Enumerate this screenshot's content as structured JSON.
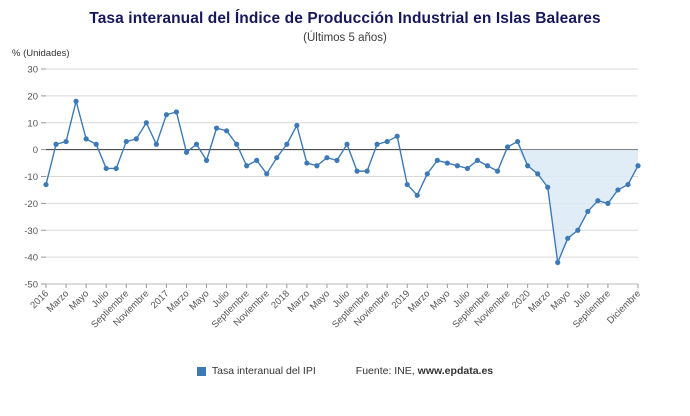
{
  "header": {
    "title": "Tasa interanual del Índice de Producción Industrial en Islas Baleares",
    "subtitle": "(Últimos 5 años)"
  },
  "legend": {
    "series_label": "Tasa interanual del IPI",
    "source_prefix": "Fuente: INE, ",
    "source_site": "www.epdata.es"
  },
  "colors": {
    "line": "#3d7ab5",
    "marker": "#3d7ab5",
    "area_fill": "#dbe9f4",
    "grid": "#d9d9d9",
    "zero_line": "#333333",
    "axis_text": "#555555",
    "title_text": "#17175c"
  },
  "chart_data": {
    "type": "line",
    "title": "Tasa interanual del Índice de Producción Industrial en Islas Baleares",
    "subtitle": "(Últimos 5 años)",
    "ylabel": "% (Unidades)",
    "series_name": "Tasa interanual del IPI",
    "x_start": "Enero 2016",
    "x_end": "Diciembre 2020",
    "frequency": "mensual",
    "ylim": [
      -50,
      30
    ],
    "y_ticks": [
      30,
      20,
      10,
      0,
      -10,
      -20,
      -30,
      -40,
      -50
    ],
    "x_ticks": [
      {
        "i": 0,
        "label": "2016"
      },
      {
        "i": 2,
        "label": "Marzo"
      },
      {
        "i": 4,
        "label": "Mayo"
      },
      {
        "i": 6,
        "label": "Julio"
      },
      {
        "i": 8,
        "label": "Septiembre"
      },
      {
        "i": 10,
        "label": "Noviembre"
      },
      {
        "i": 12,
        "label": "2017"
      },
      {
        "i": 14,
        "label": "Marzo"
      },
      {
        "i": 16,
        "label": "Mayo"
      },
      {
        "i": 18,
        "label": "Julio"
      },
      {
        "i": 20,
        "label": "Septiembre"
      },
      {
        "i": 22,
        "label": "Noviembre"
      },
      {
        "i": 24,
        "label": "2018"
      },
      {
        "i": 26,
        "label": "Marzo"
      },
      {
        "i": 28,
        "label": "Mayo"
      },
      {
        "i": 30,
        "label": "Julio"
      },
      {
        "i": 32,
        "label": "Septiembre"
      },
      {
        "i": 34,
        "label": "Noviembre"
      },
      {
        "i": 36,
        "label": "2019"
      },
      {
        "i": 38,
        "label": "Marzo"
      },
      {
        "i": 40,
        "label": "Mayo"
      },
      {
        "i": 42,
        "label": "Julio"
      },
      {
        "i": 44,
        "label": "Septiembre"
      },
      {
        "i": 46,
        "label": "Noviembre"
      },
      {
        "i": 48,
        "label": "2020"
      },
      {
        "i": 50,
        "label": "Marzo"
      },
      {
        "i": 52,
        "label": "Mayo"
      },
      {
        "i": 54,
        "label": "Julio"
      },
      {
        "i": 56,
        "label": "Septiembre"
      },
      {
        "i": 59,
        "label": "Diciembre"
      }
    ],
    "values": [
      -13,
      2,
      3,
      18,
      4,
      2,
      -7,
      -7,
      3,
      4,
      10,
      2,
      13,
      14,
      -1,
      2,
      -4,
      8,
      7,
      2,
      -6,
      -4,
      -9,
      -3,
      2,
      9,
      -5,
      -6,
      -3,
      -4,
      2,
      -8,
      -8,
      2,
      3,
      5,
      -13,
      -17,
      -9,
      -4,
      -5,
      -6,
      -7,
      -4,
      -6,
      -8,
      1,
      3,
      -6,
      -9,
      -14,
      -42,
      -33,
      -30,
      -23,
      -19,
      -20,
      -15,
      -13,
      -6
    ],
    "area_fill_from_index": 47,
    "grid": true,
    "legend_position": "bottom"
  }
}
